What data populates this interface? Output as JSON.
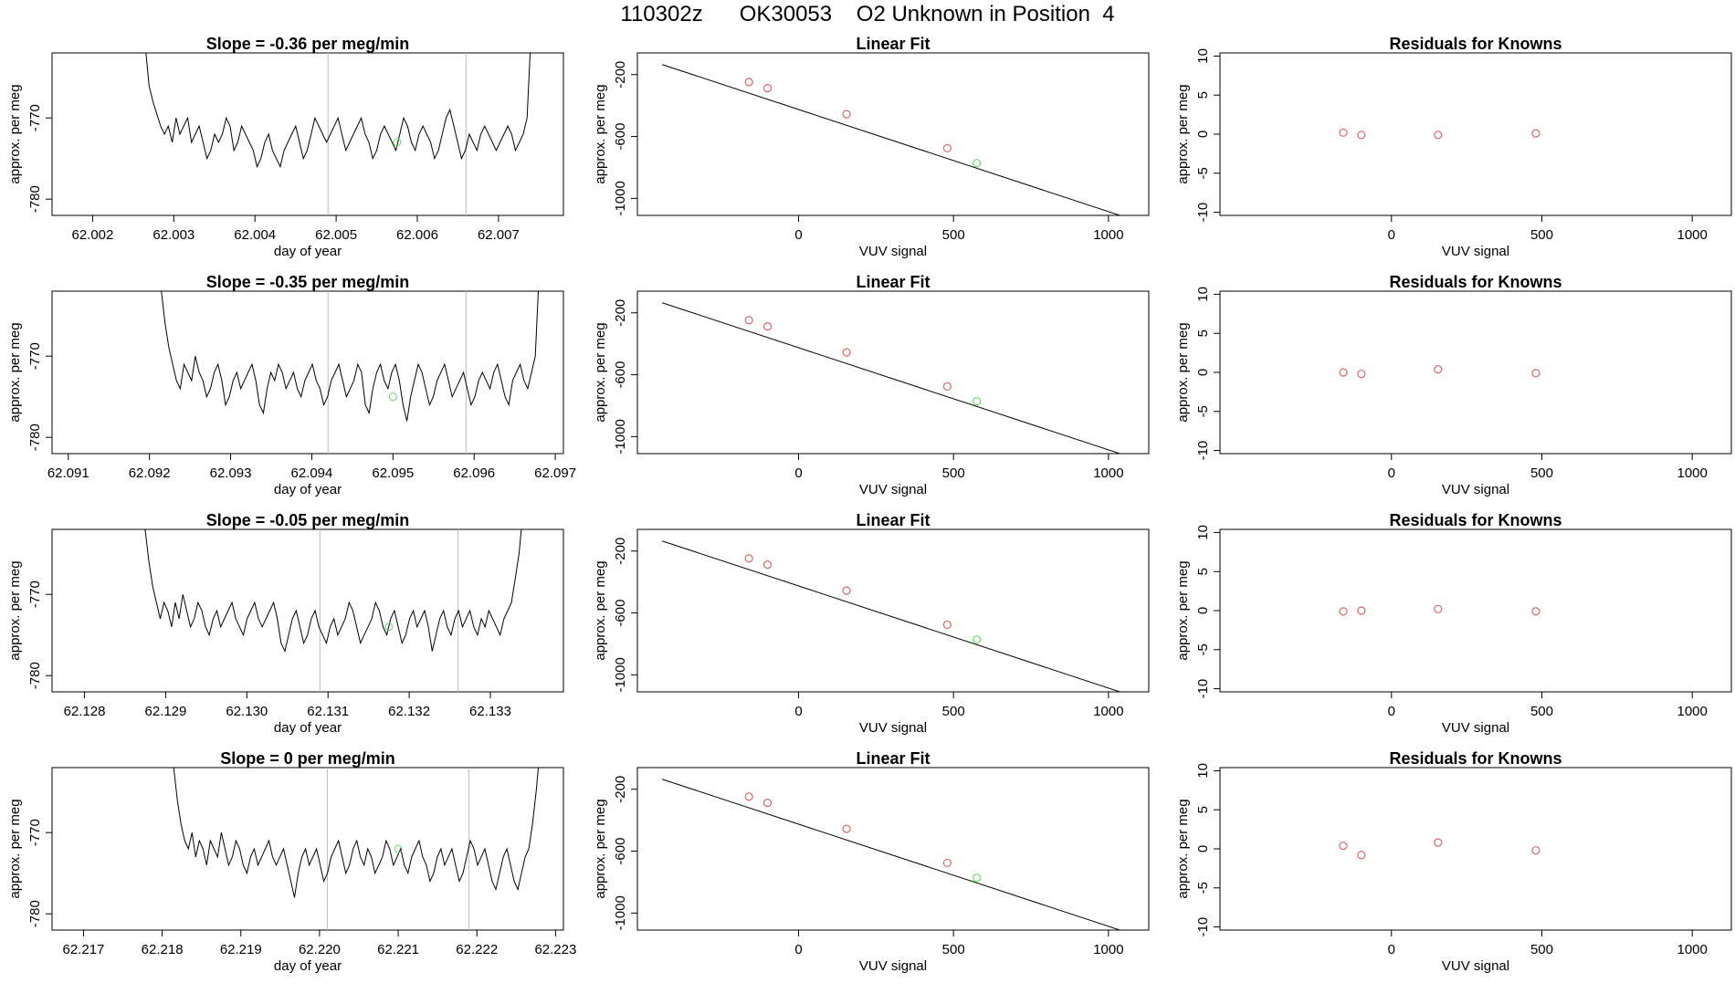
{
  "page": {
    "title": "110302z      OK30053    O2 Unknown in Position  4"
  },
  "colors": {
    "trace": "#000000",
    "marker_window": "#bdbdbd",
    "known_points": "#e06666",
    "unknown_point": "#66dd66",
    "fit_line": "#000000"
  },
  "chart_data": [
    {
      "type": "line",
      "panel": "time-series",
      "row": 1,
      "title": "Slope =  -0.36  per meg/min",
      "xlabel": "day of year",
      "ylabel": "approx. per meg",
      "xlim": [
        62.0015,
        62.0078
      ],
      "ylim": [
        -782,
        -762
      ],
      "x_ticks": [
        "62.002",
        "62.003",
        "62.004",
        "62.005",
        "62.006",
        "62.007"
      ],
      "x_tick_values": [
        62.002,
        62.003,
        62.004,
        62.005,
        62.006,
        62.007
      ],
      "y_ticks": [
        "-780",
        "-770"
      ],
      "y_tick_values": [
        -780,
        -770
      ],
      "x_start": 62.0026,
      "x_end": 62.0074,
      "trace_values": [
        -760,
        -761,
        -766,
        -768,
        -769.5,
        -771,
        -772,
        -771,
        -773,
        -770,
        -772,
        -771,
        -770,
        -773,
        -772,
        -771,
        -773,
        -775,
        -774,
        -772,
        -773,
        -772,
        -770,
        -771,
        -774,
        -773,
        -771,
        -772,
        -773,
        -774,
        -776,
        -775,
        -773,
        -772,
        -774,
        -775,
        -776,
        -774,
        -773,
        -772,
        -771,
        -773,
        -775,
        -774,
        -772,
        -770,
        -771,
        -772,
        -773,
        -772,
        -771,
        -770,
        -772,
        -774,
        -773,
        -772,
        -771,
        -770,
        -772,
        -773,
        -775,
        -774,
        -772,
        -771,
        -772,
        -773,
        -774,
        -772,
        -770,
        -771,
        -773,
        -774,
        -772,
        -771,
        -772,
        -773,
        -775,
        -774,
        -772,
        -770,
        -769,
        -771,
        -773,
        -775,
        -774,
        -772,
        -773,
        -774,
        -772,
        -771,
        -772,
        -773,
        -774,
        -773,
        -772,
        -771,
        -772,
        -774,
        -773,
        -772,
        -770,
        -760
      ],
      "window_lines": [
        62.0049,
        62.0066
      ],
      "unknown_point": {
        "x": 62.00575,
        "y": -773
      }
    },
    {
      "type": "scatter",
      "panel": "linear-fit",
      "row": 1,
      "title": "Linear Fit",
      "xlabel": "VUV signal",
      "ylabel": "approx. per meg",
      "xlim": [
        -520,
        1130
      ],
      "ylim": [
        -1110,
        -60
      ],
      "x_ticks": [
        "0",
        "500",
        "1000"
      ],
      "x_tick_values": [
        0,
        500,
        1000
      ],
      "y_ticks": [
        "-200",
        "-600",
        "-1000"
      ],
      "y_tick_values": [
        -200,
        -600,
        -1000
      ],
      "fit_line": {
        "x": [
          -440,
          1090
        ],
        "y": [
          -135,
          -1145
        ]
      },
      "knowns": {
        "x": [
          -160,
          -100,
          155,
          480
        ],
        "y": [
          -248,
          -288,
          -456,
          -676
        ]
      },
      "unknown": {
        "x": [
          575
        ],
        "y": [
          -772
        ]
      }
    },
    {
      "type": "scatter",
      "panel": "residuals",
      "row": 1,
      "title": "Residuals for Knowns",
      "xlabel": "VUV signal",
      "ylabel": "approx. per meg",
      "xlim": [
        -570,
        1130
      ],
      "ylim": [
        -10.4,
        10.4
      ],
      "x_ticks": [
        "0",
        "500",
        "1000"
      ],
      "x_tick_values": [
        0,
        500,
        1000
      ],
      "y_ticks": [
        "-10",
        "-5",
        "0",
        "5",
        "10"
      ],
      "y_tick_values": [
        -10,
        -5,
        0,
        5,
        10
      ],
      "knowns": {
        "x": [
          -160,
          -100,
          155,
          480
        ],
        "y": [
          0.2,
          -0.1,
          -0.1,
          0.1
        ]
      }
    },
    {
      "type": "line",
      "panel": "time-series",
      "row": 2,
      "title": "Slope =  -0.35  per meg/min",
      "xlabel": "day of year",
      "ylabel": "approx. per meg",
      "xlim": [
        62.0908,
        62.0971
      ],
      "ylim": [
        -782,
        -762
      ],
      "x_ticks": [
        "62.091",
        "62.092",
        "62.093",
        "62.094",
        "62.095",
        "62.096",
        "62.097"
      ],
      "x_tick_values": [
        62.091,
        62.092,
        62.093,
        62.094,
        62.095,
        62.096,
        62.097
      ],
      "y_ticks": [
        "-780",
        "-770"
      ],
      "y_tick_values": [
        -780,
        -770
      ],
      "x_start": 62.0921,
      "x_end": 62.0968,
      "trace_values": [
        -760,
        -762,
        -766,
        -769,
        -771,
        -773,
        -774,
        -771,
        -772,
        -773,
        -770,
        -772,
        -773,
        -775,
        -774,
        -772,
        -771,
        -773,
        -776,
        -775,
        -773,
        -772,
        -774,
        -773,
        -772,
        -771,
        -773,
        -776,
        -777,
        -774,
        -772,
        -773,
        -771,
        -772,
        -774,
        -773,
        -772,
        -774,
        -775,
        -773,
        -772,
        -771,
        -773,
        -774,
        -776,
        -775,
        -773,
        -772,
        -771,
        -773,
        -775,
        -774,
        -773,
        -771,
        -772,
        -776,
        -777,
        -774,
        -772,
        -771,
        -773,
        -774,
        -772,
        -771,
        -773,
        -776,
        -778,
        -775,
        -773,
        -771,
        -772,
        -774,
        -776,
        -775,
        -773,
        -772,
        -771,
        -773,
        -775,
        -774,
        -773,
        -772,
        -774,
        -776,
        -775,
        -773,
        -772,
        -773,
        -774,
        -772,
        -771,
        -773,
        -775,
        -776,
        -773,
        -772,
        -771,
        -773,
        -774,
        -772,
        -770,
        -760
      ],
      "window_lines": [
        62.0942,
        62.0959
      ],
      "unknown_point": {
        "x": 62.095,
        "y": -775
      }
    },
    {
      "type": "scatter",
      "panel": "linear-fit",
      "row": 2,
      "title": "Linear Fit",
      "xlabel": "VUV signal",
      "ylabel": "approx. per meg",
      "xlim": [
        -520,
        1130
      ],
      "ylim": [
        -1110,
        -60
      ],
      "x_ticks": [
        "0",
        "500",
        "1000"
      ],
      "x_tick_values": [
        0,
        500,
        1000
      ],
      "y_ticks": [
        "-200",
        "-600",
        "-1000"
      ],
      "y_tick_values": [
        -200,
        -600,
        -1000
      ],
      "fit_line": {
        "x": [
          -440,
          1090
        ],
        "y": [
          -135,
          -1145
        ]
      },
      "knowns": {
        "x": [
          -160,
          -100,
          155,
          480
        ],
        "y": [
          -248,
          -288,
          -456,
          -676
        ]
      },
      "unknown": {
        "x": [
          575
        ],
        "y": [
          -772
        ]
      }
    },
    {
      "type": "scatter",
      "panel": "residuals",
      "row": 2,
      "title": "Residuals for Knowns",
      "xlabel": "VUV signal",
      "ylabel": "approx. per meg",
      "xlim": [
        -570,
        1130
      ],
      "ylim": [
        -10.4,
        10.4
      ],
      "x_ticks": [
        "0",
        "500",
        "1000"
      ],
      "x_tick_values": [
        0,
        500,
        1000
      ],
      "y_ticks": [
        "-10",
        "-5",
        "0",
        "5",
        "10"
      ],
      "y_tick_values": [
        -10,
        -5,
        0,
        5,
        10
      ],
      "knowns": {
        "x": [
          -160,
          -100,
          155,
          480
        ],
        "y": [
          0.0,
          -0.2,
          0.4,
          -0.1
        ]
      }
    },
    {
      "type": "line",
      "panel": "time-series",
      "row": 3,
      "title": "Slope =  -0.05  per meg/min",
      "xlabel": "day of year",
      "ylabel": "approx. per meg",
      "xlim": [
        62.1276,
        62.1339
      ],
      "ylim": [
        -782,
        -762
      ],
      "x_ticks": [
        "62.128",
        "62.129",
        "62.130",
        "62.131",
        "62.132",
        "62.133"
      ],
      "x_tick_values": [
        62.128,
        62.129,
        62.13,
        62.131,
        62.132,
        62.133
      ],
      "y_ticks": [
        "-780",
        "-770"
      ],
      "y_tick_values": [
        -780,
        -770
      ],
      "x_start": 62.1287,
      "x_end": 62.1334,
      "trace_values": [
        -760,
        -762,
        -766,
        -769,
        -771,
        -773,
        -771,
        -772,
        -774,
        -771,
        -773,
        -770,
        -772,
        -774,
        -773,
        -771,
        -772,
        -774,
        -775,
        -773,
        -772,
        -774,
        -773,
        -772,
        -771,
        -773,
        -774,
        -775,
        -773,
        -772,
        -771,
        -773,
        -774,
        -773,
        -772,
        -771,
        -773,
        -776,
        -777,
        -775,
        -773,
        -772,
        -774,
        -776,
        -775,
        -773,
        -772,
        -774,
        -775,
        -776,
        -774,
        -773,
        -775,
        -774,
        -773,
        -771,
        -772,
        -774,
        -776,
        -775,
        -774,
        -773,
        -771,
        -772,
        -774,
        -775,
        -773,
        -772,
        -774,
        -776,
        -775,
        -773,
        -772,
        -774,
        -773,
        -772,
        -774,
        -777,
        -775,
        -773,
        -772,
        -774,
        -775,
        -773,
        -772,
        -774,
        -773,
        -772,
        -774,
        -775,
        -773,
        -774,
        -772,
        -773,
        -774,
        -775,
        -773,
        -772,
        -771,
        -768,
        -765,
        -760
      ],
      "window_lines": [
        62.1309,
        62.1326
      ],
      "unknown_point": {
        "x": 62.13175,
        "y": -774
      }
    },
    {
      "type": "scatter",
      "panel": "linear-fit",
      "row": 3,
      "title": "Linear Fit",
      "xlabel": "VUV signal",
      "ylabel": "approx. per meg",
      "xlim": [
        -520,
        1130
      ],
      "ylim": [
        -1110,
        -60
      ],
      "x_ticks": [
        "0",
        "500",
        "1000"
      ],
      "x_tick_values": [
        0,
        500,
        1000
      ],
      "y_ticks": [
        "-200",
        "-600",
        "-1000"
      ],
      "y_tick_values": [
        -200,
        -600,
        -1000
      ],
      "fit_line": {
        "x": [
          -440,
          1090
        ],
        "y": [
          -135,
          -1145
        ]
      },
      "knowns": {
        "x": [
          -160,
          -100,
          155,
          480
        ],
        "y": [
          -248,
          -288,
          -456,
          -676
        ]
      },
      "unknown": {
        "x": [
          575
        ],
        "y": [
          -772
        ]
      }
    },
    {
      "type": "scatter",
      "panel": "residuals",
      "row": 3,
      "title": "Residuals for Knowns",
      "xlabel": "VUV signal",
      "ylabel": "approx. per meg",
      "xlim": [
        -570,
        1130
      ],
      "ylim": [
        -10.4,
        10.4
      ],
      "x_ticks": [
        "0",
        "500",
        "1000"
      ],
      "x_tick_values": [
        0,
        500,
        1000
      ],
      "y_ticks": [
        "-10",
        "-5",
        "0",
        "5",
        "10"
      ],
      "y_tick_values": [
        -10,
        -5,
        0,
        5,
        10
      ],
      "knowns": {
        "x": [
          -160,
          -100,
          155,
          480
        ],
        "y": [
          -0.1,
          0.0,
          0.2,
          -0.1
        ]
      }
    },
    {
      "type": "line",
      "panel": "time-series",
      "row": 4,
      "title": "Slope =  0  per meg/min",
      "xlabel": "day of year",
      "ylabel": "approx. per meg",
      "xlim": [
        62.2166,
        62.2231
      ],
      "ylim": [
        -782,
        -762
      ],
      "x_ticks": [
        "62.217",
        "62.218",
        "62.219",
        "62.220",
        "62.221",
        "62.222",
        "62.223"
      ],
      "x_tick_values": [
        62.217,
        62.218,
        62.219,
        62.22,
        62.221,
        62.222,
        62.223
      ],
      "y_ticks": [
        "-780",
        "-770"
      ],
      "y_tick_values": [
        -780,
        -770
      ],
      "x_start": 62.2181,
      "x_end": 62.2228,
      "trace_values": [
        -760,
        -762,
        -766,
        -769,
        -771,
        -772,
        -770,
        -773,
        -771,
        -772,
        -774,
        -771,
        -772,
        -773,
        -770,
        -772,
        -774,
        -773,
        -771,
        -772,
        -774,
        -775,
        -773,
        -772,
        -774,
        -773,
        -772,
        -771,
        -773,
        -774,
        -773,
        -772,
        -774,
        -776,
        -778,
        -775,
        -773,
        -772,
        -774,
        -773,
        -772,
        -774,
        -776,
        -775,
        -773,
        -772,
        -771,
        -773,
        -775,
        -774,
        -772,
        -771,
        -773,
        -774,
        -772,
        -773,
        -775,
        -774,
        -773,
        -771,
        -772,
        -774,
        -773,
        -772,
        -774,
        -775,
        -773,
        -772,
        -771,
        -773,
        -774,
        -776,
        -775,
        -773,
        -772,
        -774,
        -773,
        -772,
        -774,
        -776,
        -775,
        -773,
        -771,
        -772,
        -774,
        -773,
        -772,
        -774,
        -776,
        -777,
        -775,
        -773,
        -772,
        -774,
        -776,
        -777,
        -775,
        -773,
        -772,
        -769,
        -765,
        -760
      ],
      "window_lines": [
        62.2201,
        62.2219
      ],
      "unknown_point": {
        "x": 62.221,
        "y": -772
      }
    },
    {
      "type": "scatter",
      "panel": "linear-fit",
      "row": 4,
      "title": "Linear Fit",
      "xlabel": "VUV signal",
      "ylabel": "approx. per meg",
      "xlim": [
        -520,
        1130
      ],
      "ylim": [
        -1110,
        -60
      ],
      "x_ticks": [
        "0",
        "500",
        "1000"
      ],
      "x_tick_values": [
        0,
        500,
        1000
      ],
      "y_ticks": [
        "-200",
        "-600",
        "-1000"
      ],
      "y_tick_values": [
        -200,
        -600,
        -1000
      ],
      "fit_line": {
        "x": [
          -440,
          1090
        ],
        "y": [
          -135,
          -1145
        ]
      },
      "knowns": {
        "x": [
          -160,
          -100,
          155,
          480
        ],
        "y": [
          -248,
          -288,
          -456,
          -676
        ]
      },
      "unknown": {
        "x": [
          575
        ],
        "y": [
          -772
        ]
      }
    },
    {
      "type": "scatter",
      "panel": "residuals",
      "row": 4,
      "title": "Residuals for Knowns",
      "xlabel": "VUV signal",
      "ylabel": "approx. per meg",
      "xlim": [
        -570,
        1130
      ],
      "ylim": [
        -10.4,
        10.4
      ],
      "x_ticks": [
        "0",
        "500",
        "1000"
      ],
      "x_tick_values": [
        0,
        500,
        1000
      ],
      "y_ticks": [
        "-10",
        "-5",
        "0",
        "5",
        "10"
      ],
      "y_tick_values": [
        -10,
        -5,
        0,
        5,
        10
      ],
      "knowns": {
        "x": [
          -160,
          -100,
          155,
          480
        ],
        "y": [
          0.4,
          -0.8,
          0.8,
          -0.2
        ]
      }
    }
  ]
}
